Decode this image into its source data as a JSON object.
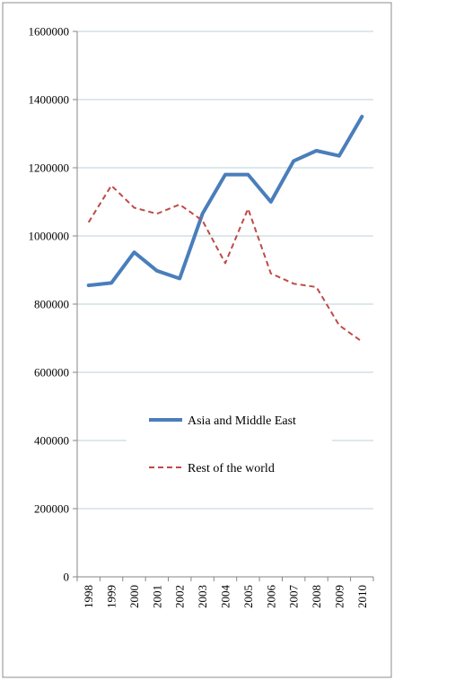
{
  "chart_data": {
    "type": "line",
    "title": "",
    "xlabel": "",
    "ylabel": "",
    "categories": [
      "1998",
      "1999",
      "2000",
      "2001",
      "2002",
      "2003",
      "2004",
      "2005",
      "2006",
      "2007",
      "2008",
      "2009",
      "2010"
    ],
    "y_ticks": [
      "0",
      "200000",
      "400000",
      "600000",
      "800000",
      "1000000",
      "1200000",
      "1400000",
      "1600000"
    ],
    "ylim": [
      0,
      1600000
    ],
    "grid": true,
    "legend_position": "center",
    "series": [
      {
        "name": "Asia and Middle East",
        "color": "#4a7ebb",
        "style": "solid",
        "values": [
          855000,
          862000,
          952000,
          898000,
          875000,
          1065000,
          1180000,
          1180000,
          1100000,
          1220000,
          1250000,
          1235000,
          1350000
        ]
      },
      {
        "name": "Rest of the world",
        "color": "#be4b48",
        "style": "dashed",
        "values": [
          1040000,
          1148000,
          1083000,
          1065000,
          1092000,
          1045000,
          920000,
          1080000,
          890000,
          860000,
          850000,
          738000,
          690000
        ]
      }
    ]
  }
}
